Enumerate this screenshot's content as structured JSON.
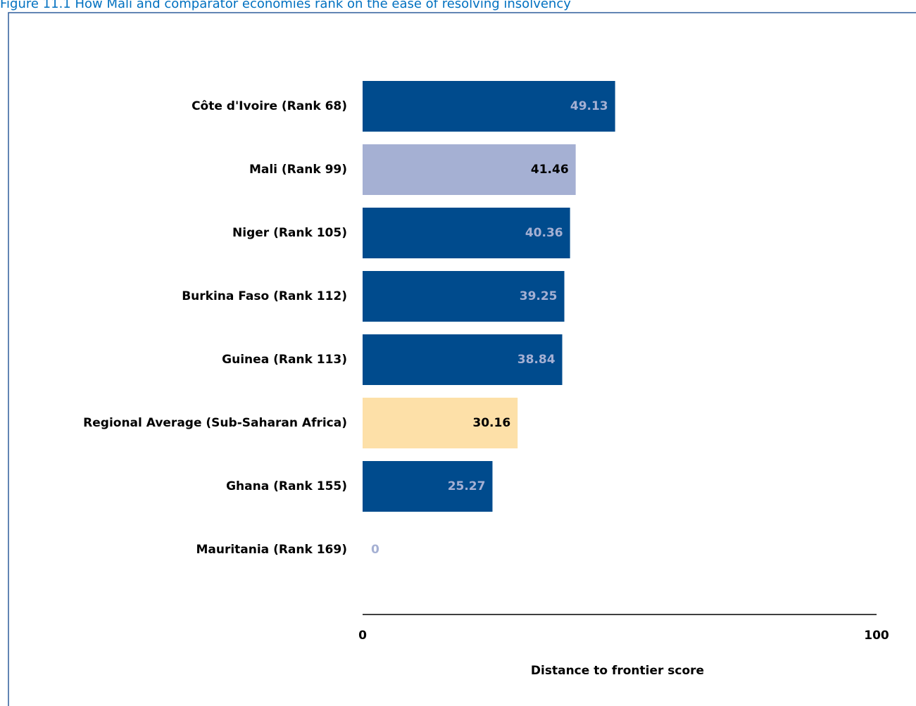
{
  "chart_data": {
    "type": "hbar",
    "title": "Figure 11.1 How Mali and comparator economies rank on the ease of resolving insolvency",
    "categories": [
      "Côte d'Ivoire (Rank 68)",
      "Mali (Rank 99)",
      "Niger (Rank 105)",
      "Burkina Faso (Rank 112)",
      "Guinea (Rank 113)",
      "Regional Average (Sub-Saharan Africa)",
      "Ghana (Rank 155)",
      "Mauritania (Rank 169)"
    ],
    "values": [
      49.13,
      41.46,
      40.36,
      39.25,
      38.84,
      30.16,
      25.27,
      0
    ],
    "colors": [
      "#004b8d",
      "#a5b0d3",
      "#004b8d",
      "#004b8d",
      "#004b8d",
      "#fde0a8",
      "#004b8d",
      "#004b8d"
    ],
    "label_colors": [
      "#a5b0d3",
      "#000000",
      "#a5b0d3",
      "#a5b0d3",
      "#a5b0d3",
      "#000000",
      "#a5b0d3",
      "#a5b0d3"
    ],
    "xlim": [
      0,
      100
    ],
    "xticks": [
      0,
      100
    ],
    "xlabel": "Distance to frontier score"
  }
}
